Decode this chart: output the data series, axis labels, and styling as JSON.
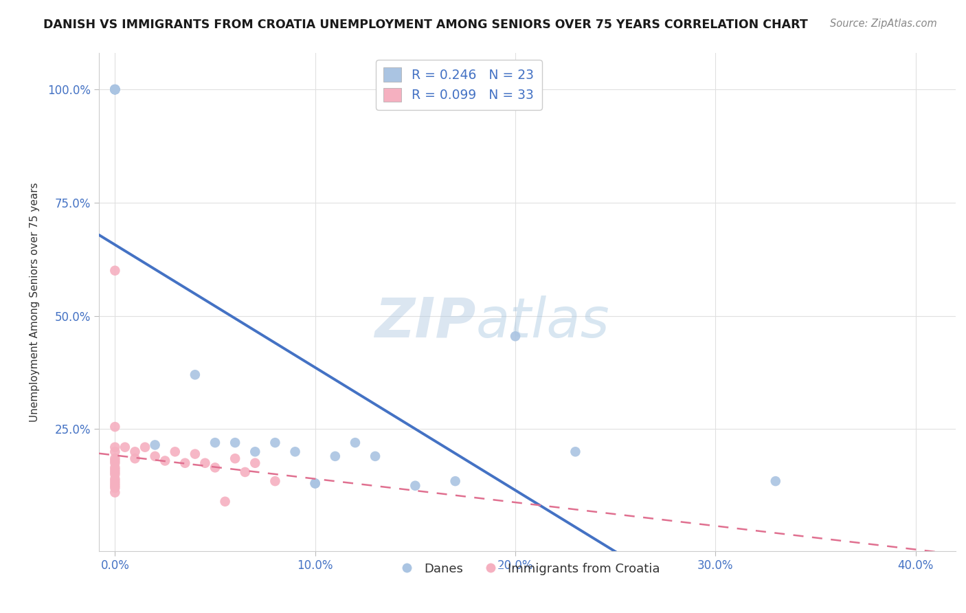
{
  "title": "DANISH VS IMMIGRANTS FROM CROATIA UNEMPLOYMENT AMONG SENIORS OVER 75 YEARS CORRELATION CHART",
  "source": "Source: ZipAtlas.com",
  "ylabel": "Unemployment Among Seniors over 75 years",
  "xlabel_ticks": [
    "0.0%",
    "10.0%",
    "20.0%",
    "30.0%",
    "40.0%"
  ],
  "xlabel_vals": [
    0.0,
    0.1,
    0.2,
    0.3,
    0.4
  ],
  "ylabel_ticks": [
    "25.0%",
    "50.0%",
    "75.0%",
    "100.0%"
  ],
  "ylabel_vals": [
    0.25,
    0.5,
    0.75,
    1.0
  ],
  "xlim": [
    -0.008,
    0.42
  ],
  "ylim": [
    -0.02,
    1.08
  ],
  "danes_R": 0.246,
  "danes_N": 23,
  "immigrants_R": 0.099,
  "immigrants_N": 33,
  "danes_color": "#aac4e2",
  "immigrants_color": "#f5b0c0",
  "danes_line_color": "#4472c4",
  "immigrants_line_color": "#e07090",
  "danes_x": [
    0.0,
    0.0,
    0.0,
    0.0,
    0.0,
    0.0,
    0.02,
    0.04,
    0.05,
    0.06,
    0.07,
    0.08,
    0.09,
    0.1,
    0.1,
    0.11,
    0.12,
    0.13,
    0.15,
    0.17,
    0.2,
    0.23,
    0.33
  ],
  "danes_y": [
    1.0,
    1.0,
    1.0,
    1.0,
    1.0,
    1.0,
    0.215,
    0.37,
    0.22,
    0.22,
    0.2,
    0.22,
    0.2,
    0.13,
    0.13,
    0.19,
    0.22,
    0.19,
    0.125,
    0.135,
    0.455,
    0.2,
    0.135
  ],
  "immigrants_x": [
    0.0,
    0.0,
    0.0,
    0.0,
    0.0,
    0.0,
    0.0,
    0.0,
    0.0,
    0.0,
    0.0,
    0.0,
    0.0,
    0.0,
    0.0,
    0.0,
    0.0,
    0.005,
    0.01,
    0.01,
    0.015,
    0.02,
    0.025,
    0.03,
    0.035,
    0.04,
    0.045,
    0.05,
    0.055,
    0.06,
    0.065,
    0.07,
    0.08
  ],
  "immigrants_y": [
    0.6,
    0.255,
    0.21,
    0.2,
    0.185,
    0.18,
    0.175,
    0.165,
    0.16,
    0.155,
    0.15,
    0.14,
    0.135,
    0.13,
    0.125,
    0.12,
    0.11,
    0.21,
    0.2,
    0.185,
    0.21,
    0.19,
    0.18,
    0.2,
    0.175,
    0.195,
    0.175,
    0.165,
    0.09,
    0.185,
    0.155,
    0.175,
    0.135
  ],
  "watermark_zip": "ZIP",
  "watermark_atlas": "atlas",
  "background_color": "#ffffff",
  "grid_color": "#e0e0e0",
  "title_fontsize": 12.5,
  "tick_fontsize": 12,
  "ylabel_fontsize": 11
}
